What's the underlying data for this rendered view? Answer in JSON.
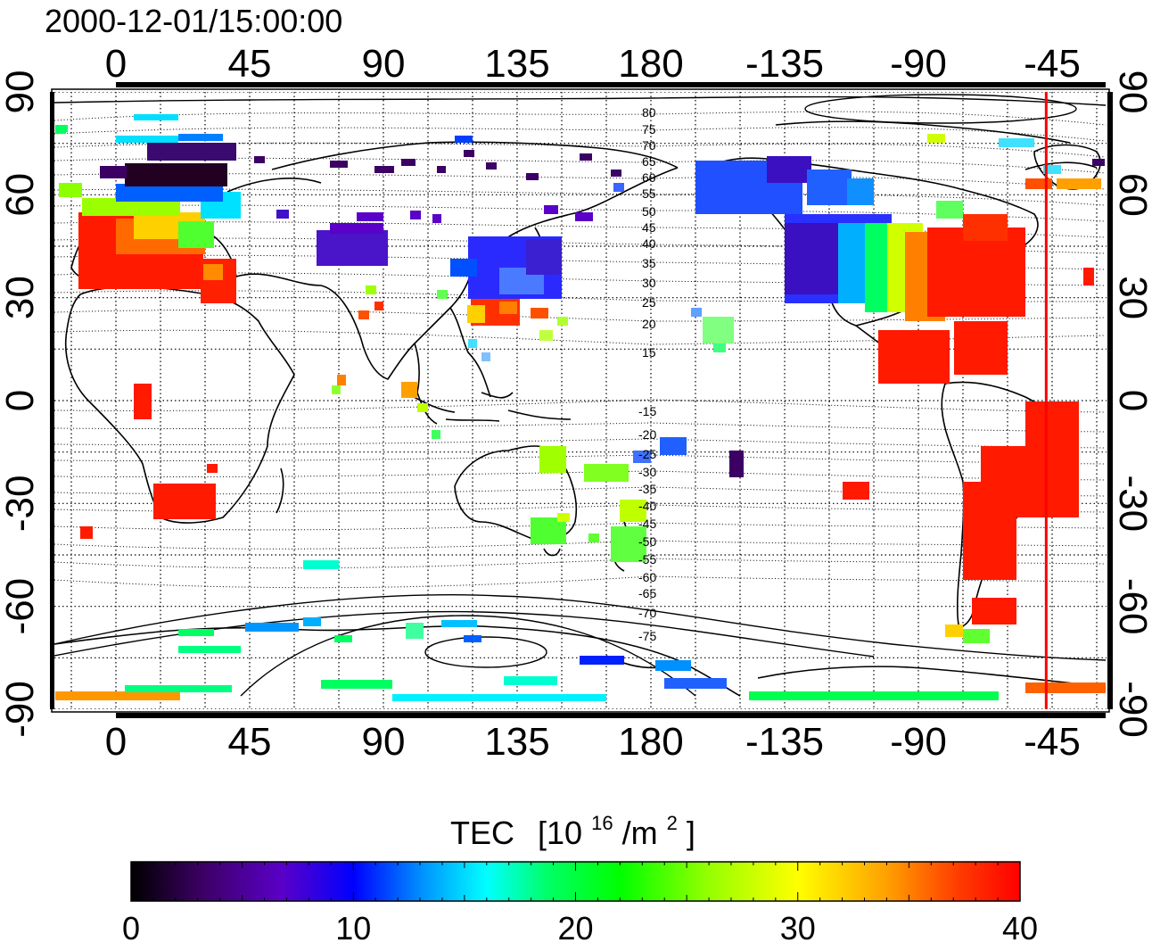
{
  "timestamp": "2000-12-01/15:00:00",
  "map": {
    "x_ticks": [
      "0",
      "45",
      "90",
      "135",
      "180",
      "-135",
      "-90",
      "-45"
    ],
    "y_ticks": [
      "90",
      "60",
      "30",
      "0",
      "-30",
      "-60",
      "-90"
    ],
    "contour_labels_north": [
      "80",
      "75",
      "70",
      "65",
      "60",
      "55",
      "50",
      "45",
      "40",
      "35",
      "30",
      "25",
      "20",
      "15"
    ],
    "contour_labels_south": [
      "-15",
      "-20",
      "-25",
      "-30",
      "-35",
      "-40",
      "-45",
      "-50",
      "-55",
      "-60",
      "-65",
      "-70",
      "-75"
    ],
    "red_marker_longitude": -47,
    "colors": {
      "coast": "#000000",
      "grid": "#000000",
      "marker": "#ff0000"
    }
  },
  "colorbar": {
    "title": "TEC",
    "unit_base": "[10",
    "unit_exp": "16",
    "unit_mid": "/m",
    "unit_exp2": "2",
    "unit_end": "]",
    "ticks": [
      "0",
      "10",
      "20",
      "30",
      "40"
    ],
    "min": 0,
    "max": 40,
    "stops": [
      "#000000",
      "#3c0064",
      "#5a00c8",
      "#0000ff",
      "#0096ff",
      "#00ffff",
      "#00ff64",
      "#00ff00",
      "#96ff00",
      "#ffff00",
      "#ffa000",
      "#ff3c00",
      "#ff0000"
    ]
  }
}
